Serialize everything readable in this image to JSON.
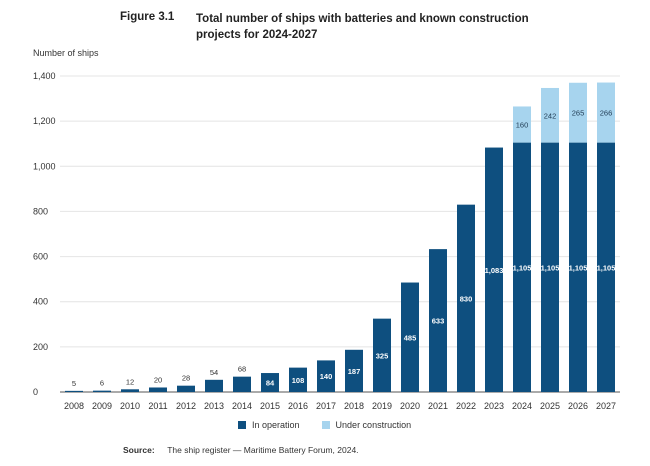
{
  "header": {
    "figure_label": "Figure 3.1",
    "title": "Total number of ships with batteries and known construction projects for 2024-2027"
  },
  "footer": {
    "source_label": "Source:",
    "source_text": "The ship register — Maritime Battery Forum, 2024."
  },
  "colors": {
    "in_operation": "#0e4f7f",
    "under_construction": "#a7d4ee",
    "grid": "#e4e4e4",
    "axis": "#555555"
  },
  "chart_data": {
    "type": "bar",
    "stacked": true,
    "ylabel": "Number of ships",
    "xlabel": "",
    "ylim": [
      0,
      1400
    ],
    "yticks": [
      0,
      200,
      400,
      600,
      800,
      1000,
      1200,
      1400
    ],
    "ytick_labels": [
      "0",
      "200",
      "400",
      "600",
      "800",
      "1,000",
      "1,200",
      "1,400"
    ],
    "grid": "horizontal",
    "legend_position": "bottom",
    "categories": [
      "2008",
      "2009",
      "2010",
      "2011",
      "2012",
      "2013",
      "2014",
      "2015",
      "2016",
      "2017",
      "2018",
      "2019",
      "2020",
      "2021",
      "2022",
      "2023",
      "2024",
      "2025",
      "2026",
      "2027"
    ],
    "series": [
      {
        "name": "In operation",
        "values": [
          5,
          6,
          12,
          20,
          28,
          54,
          68,
          84,
          108,
          140,
          187,
          325,
          485,
          633,
          830,
          1083,
          1105,
          1105,
          1105,
          1105
        ],
        "labels": [
          "5",
          "6",
          "12",
          "20",
          "28",
          "54",
          "68",
          "84",
          "108",
          "140",
          "187",
          "325",
          "485",
          "633",
          "830",
          "1,083",
          "1,105",
          "1,105",
          "1,105",
          "1,105"
        ]
      },
      {
        "name": "Under construction",
        "values": [
          0,
          0,
          0,
          0,
          0,
          0,
          0,
          0,
          0,
          0,
          0,
          0,
          0,
          0,
          0,
          0,
          160,
          242,
          265,
          266
        ],
        "labels": [
          "",
          "",
          "",
          "",
          "",
          "",
          "",
          "",
          "",
          "",
          "",
          "",
          "",
          "",
          "",
          "",
          "160",
          "242",
          "265",
          "266"
        ]
      }
    ]
  }
}
